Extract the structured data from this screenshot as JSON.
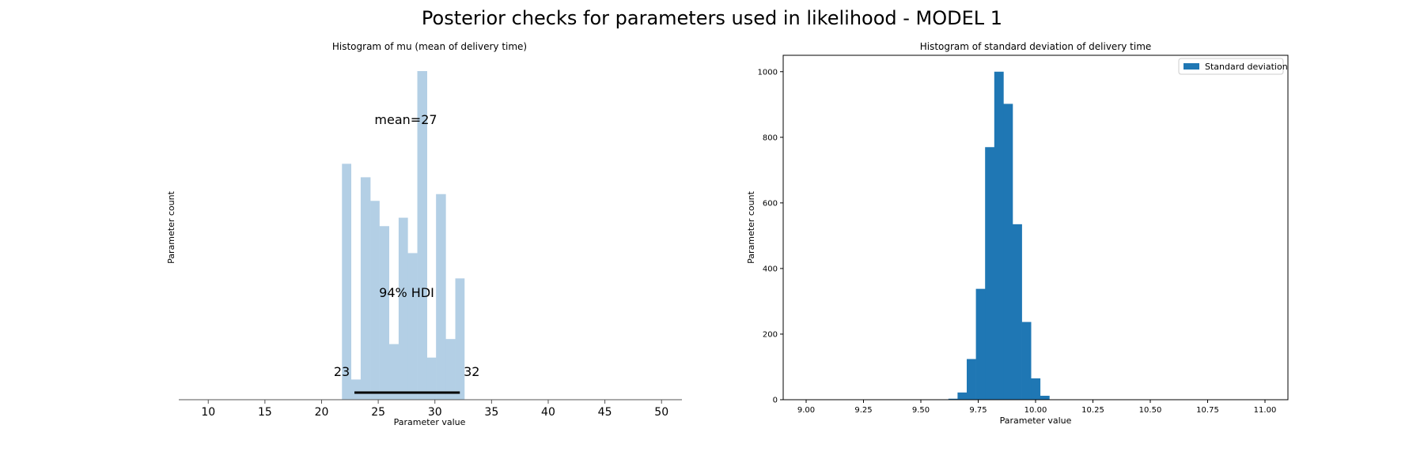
{
  "figure": {
    "title": "Posterior checks for parameters used in likelihood - MODEL 1"
  },
  "chart_data": [
    {
      "type": "bar",
      "title": "Histogram of mu (mean of delivery time)",
      "xlabel": "Parameter value",
      "ylabel": "Parameter count",
      "xlim": [
        7.4,
        51.8
      ],
      "xticks": [
        10,
        15,
        20,
        25,
        30,
        35,
        40,
        45,
        50
      ],
      "bar_color": "#b3cfe5",
      "bins": [
        {
          "x0": 21.8,
          "x1": 22.6,
          "value": 14
        },
        {
          "x0": 22.6,
          "x1": 23.45,
          "value": 1.2
        },
        {
          "x0": 23.45,
          "x1": 24.3,
          "value": 13.2
        },
        {
          "x0": 24.3,
          "x1": 25.1,
          "value": 11.8
        },
        {
          "x0": 25.1,
          "x1": 25.95,
          "value": 10.3
        },
        {
          "x0": 25.95,
          "x1": 26.8,
          "value": 3.3
        },
        {
          "x0": 26.8,
          "x1": 27.6,
          "value": 10.8
        },
        {
          "x0": 27.6,
          "x1": 28.45,
          "value": 8.7
        },
        {
          "x0": 28.45,
          "x1": 29.3,
          "value": 19.5
        },
        {
          "x0": 29.3,
          "x1": 30.1,
          "value": 2.5
        },
        {
          "x0": 30.1,
          "x1": 30.95,
          "value": 12.2
        },
        {
          "x0": 30.95,
          "x1": 31.8,
          "value": 3.6
        },
        {
          "x0": 31.8,
          "x1": 32.6,
          "value": 7.2
        }
      ],
      "ymax": 19.5,
      "mean_label": "mean=27",
      "hdi": {
        "label": "94% HDI",
        "low": 22.9,
        "high": 32.2,
        "low_label": "23",
        "high_label": "32"
      }
    },
    {
      "type": "bar",
      "title": "Histogram of standard deviation of delivery time",
      "xlabel": "Parameter value",
      "ylabel": "Parameter count",
      "xlim": [
        8.9,
        11.1
      ],
      "ylim": [
        0,
        1050
      ],
      "xticks": [
        "9.00",
        "9.25",
        "9.50",
        "9.75",
        "10.00",
        "10.25",
        "10.50",
        "10.75",
        "11.00"
      ],
      "yticks": [
        0,
        200,
        400,
        600,
        800,
        1000
      ],
      "legend": {
        "label": "Standard deviation",
        "position": "upper right"
      },
      "bar_color": "#1f77b4",
      "bins": [
        {
          "x0": 9.62,
          "x1": 9.66,
          "value": 3
        },
        {
          "x0": 9.66,
          "x1": 9.7,
          "value": 22
        },
        {
          "x0": 9.7,
          "x1": 9.74,
          "value": 124
        },
        {
          "x0": 9.74,
          "x1": 9.78,
          "value": 338
        },
        {
          "x0": 9.78,
          "x1": 9.82,
          "value": 770
        },
        {
          "x0": 9.82,
          "x1": 9.86,
          "value": 1000
        },
        {
          "x0": 9.86,
          "x1": 9.9,
          "value": 902
        },
        {
          "x0": 9.9,
          "x1": 9.94,
          "value": 535
        },
        {
          "x0": 9.94,
          "x1": 9.98,
          "value": 237
        },
        {
          "x0": 9.98,
          "x1": 10.02,
          "value": 65
        },
        {
          "x0": 10.02,
          "x1": 10.06,
          "value": 12
        }
      ]
    }
  ]
}
